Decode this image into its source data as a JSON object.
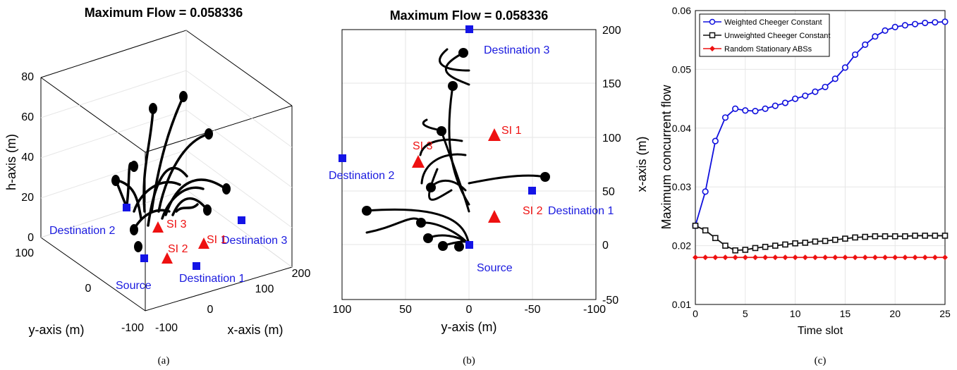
{
  "panels": {
    "a": {
      "title": "Maximum Flow = 0.058336",
      "caption": "(a)",
      "xlabel": "x-axis (m)",
      "ylabel": "y-axis (m)",
      "zlabel": "h-axis (m)",
      "z_ticks": [
        "0",
        "20",
        "40",
        "60",
        "80"
      ],
      "y_ticks": [
        "100",
        "0",
        "-100"
      ],
      "x_ticks": [
        "-100",
        "0",
        "100",
        "200"
      ],
      "labels": {
        "destination_1": "Destination 1",
        "destination_2": "Destination 2",
        "destination_3": "Destination 3",
        "source": "Source",
        "si_1": "SI 1",
        "si_2": "SI 2",
        "si_3": "SI 3"
      }
    },
    "b": {
      "title": "Maximum Flow = 0.058336",
      "caption": "(b)",
      "xlabel": "y-axis (m)",
      "ylabel": "x-axis (m)",
      "x_ticks": [
        "100",
        "50",
        "0",
        "-50",
        "-100"
      ],
      "y_ticks": [
        "200",
        "150",
        "100",
        "50",
        "0",
        "-50"
      ],
      "labels": {
        "destination_1": "Destination 1",
        "destination_2": "Destination 2",
        "destination_3": "Destination 3",
        "source": "Source",
        "si_1": "SI 1",
        "si_2": "SI 2",
        "si_3": "SI 3"
      }
    },
    "c": {
      "caption": "(c)"
    }
  },
  "chart_data": {
    "type": "line",
    "xlabel": "Time slot",
    "ylabel": "Maximum concurrent flow",
    "xlim": [
      0,
      25
    ],
    "ylim": [
      0.01,
      0.06
    ],
    "x_ticks": [
      "0",
      "5",
      "10",
      "15",
      "20",
      "25"
    ],
    "y_ticks": [
      "0.01",
      "0.02",
      "0.03",
      "0.04",
      "0.05",
      "0.06"
    ],
    "grid": true,
    "legend_position": "top-left",
    "x": [
      0,
      1,
      2,
      3,
      4,
      5,
      6,
      7,
      8,
      9,
      10,
      11,
      12,
      13,
      14,
      15,
      16,
      17,
      18,
      19,
      20,
      21,
      22,
      23,
      24,
      25
    ],
    "series": [
      {
        "name": "Weighted Cheeger Constant",
        "color": "#1010dd",
        "marker": "circle",
        "values": [
          0.0234,
          0.0292,
          0.0378,
          0.0418,
          0.0433,
          0.043,
          0.0429,
          0.0433,
          0.0438,
          0.0443,
          0.045,
          0.0455,
          0.0462,
          0.047,
          0.0484,
          0.0503,
          0.0525,
          0.0542,
          0.0556,
          0.0566,
          0.0572,
          0.0575,
          0.0577,
          0.0579,
          0.058,
          0.0581
        ]
      },
      {
        "name": "Unweighted Cheeger Constant",
        "color": "#111111",
        "marker": "square",
        "values": [
          0.0234,
          0.0226,
          0.0213,
          0.02,
          0.0192,
          0.0193,
          0.0196,
          0.0198,
          0.02,
          0.0202,
          0.0204,
          0.0205,
          0.0207,
          0.0208,
          0.021,
          0.0212,
          0.0214,
          0.0215,
          0.0216,
          0.0216,
          0.0216,
          0.0216,
          0.0217,
          0.0217,
          0.0217,
          0.0217
        ]
      },
      {
        "name": "Random Stationary ABSs",
        "color": "#ee1111",
        "marker": "diamond",
        "values": [
          0.018,
          0.018,
          0.018,
          0.018,
          0.018,
          0.018,
          0.018,
          0.018,
          0.018,
          0.018,
          0.018,
          0.018,
          0.018,
          0.018,
          0.018,
          0.018,
          0.018,
          0.018,
          0.018,
          0.018,
          0.018,
          0.018,
          0.018,
          0.018,
          0.018,
          0.018
        ]
      }
    ]
  }
}
